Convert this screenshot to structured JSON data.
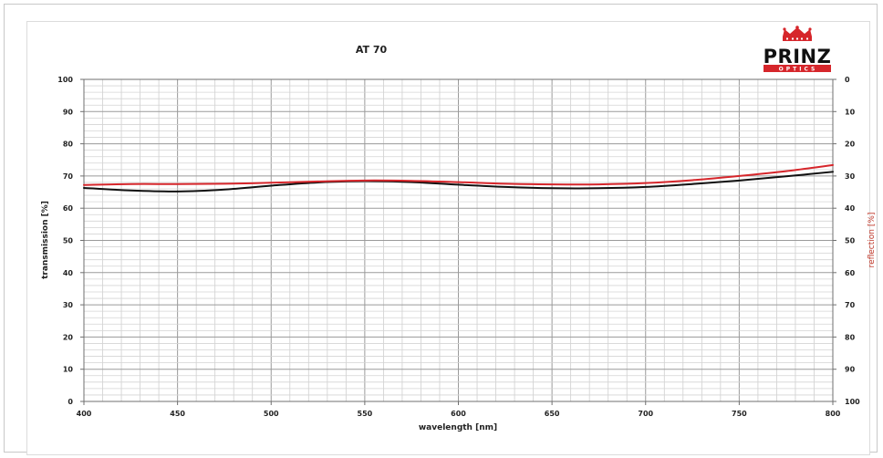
{
  "logo": {
    "name": "PRINZ",
    "subtitle": "OPTICS",
    "color": "#d6262b"
  },
  "chart_data": {
    "type": "line",
    "title": "AT 70",
    "xlabel": "wavelength [nm]",
    "ylabel": "transmission [%]",
    "ylabel_right": "reflection [%]",
    "xlim": [
      400,
      800
    ],
    "ylim": [
      0,
      100
    ],
    "ylim_right": [
      100,
      0
    ],
    "x_ticks": [
      400,
      450,
      500,
      550,
      600,
      650,
      700,
      750,
      800
    ],
    "y_ticks": [
      0,
      10,
      20,
      30,
      40,
      50,
      60,
      70,
      80,
      90,
      100
    ],
    "y_ticks_right": [
      100,
      90,
      80,
      70,
      60,
      50,
      40,
      30,
      20,
      10,
      0
    ],
    "grid": true,
    "x": [
      400,
      425,
      450,
      475,
      500,
      525,
      550,
      575,
      600,
      625,
      650,
      675,
      700,
      725,
      750,
      775,
      800
    ],
    "series": [
      {
        "key": "transmission",
        "color": "#111111",
        "values": [
          66.3,
          65.5,
          65.2,
          65.8,
          67.0,
          68.0,
          68.4,
          68.1,
          67.3,
          66.6,
          66.2,
          66.2,
          66.6,
          67.5,
          68.6,
          69.9,
          71.3
        ]
      },
      {
        "key": "reflection",
        "color": "#d6262b",
        "values": [
          67.2,
          67.5,
          67.5,
          67.6,
          67.9,
          68.3,
          68.6,
          68.5,
          68.1,
          67.6,
          67.4,
          67.4,
          67.8,
          68.7,
          70.0,
          71.5,
          73.4
        ]
      }
    ]
  }
}
